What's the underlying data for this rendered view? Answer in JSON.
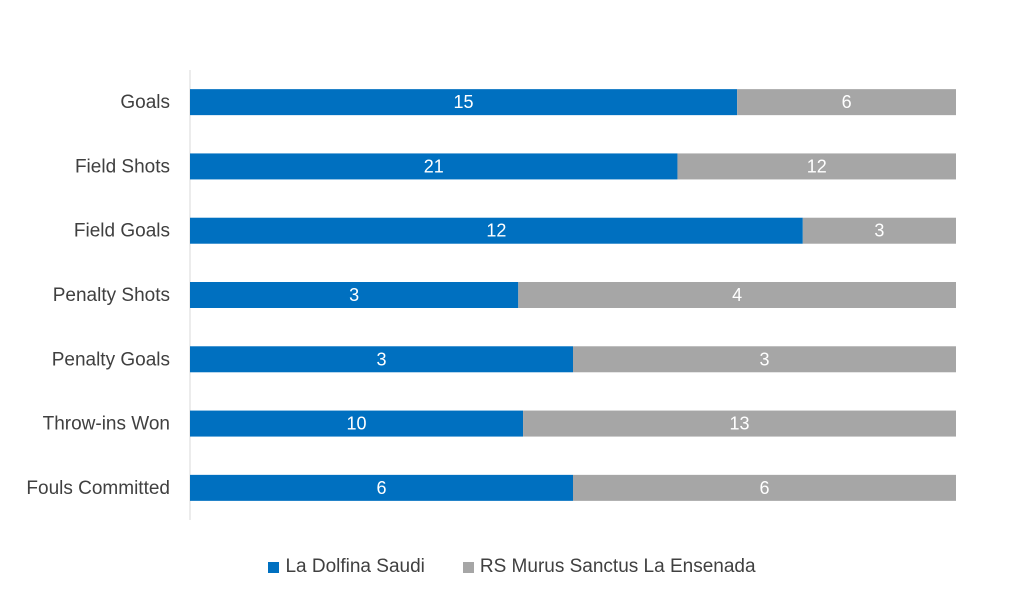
{
  "chart_data": {
    "type": "bar",
    "orientation": "horizontal",
    "stacking": "percent",
    "categories": [
      "Goals",
      "Field Shots",
      "Field Goals",
      "Penalty Shots",
      "Penalty Goals",
      "Throw-ins Won",
      "Fouls Committed"
    ],
    "series": [
      {
        "name": "La Dolfina Saudi",
        "color": "#0070C0",
        "values": [
          15,
          21,
          12,
          3,
          3,
          10,
          6
        ]
      },
      {
        "name": "RS Murus Sanctus La Ensenada",
        "color": "#A6A6A6",
        "values": [
          6,
          12,
          3,
          4,
          3,
          13,
          6
        ]
      }
    ],
    "data_labels": true,
    "legend_position": "bottom",
    "grid": false
  }
}
